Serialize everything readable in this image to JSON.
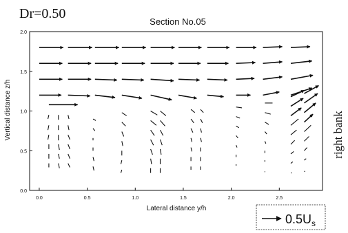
{
  "chart_data": {
    "type": "vector-field",
    "panel_label": "Dr=0.50",
    "title": "Section No.05",
    "xlabel": "Lateral distance y/h",
    "ylabel": "Vertical distance z/h",
    "side_label": "right bank",
    "xlim": [
      -0.1,
      2.95
    ],
    "ylim": [
      0.0,
      2.0
    ],
    "x_ticks": [
      {
        "value": 0.0,
        "label": "0.0"
      },
      {
        "value": 0.5,
        "label": "0.5"
      },
      {
        "value": 1.0,
        "label": "1.0"
      },
      {
        "value": 1.5,
        "label": "1.5"
      },
      {
        "value": 2.0,
        "label": "2.0"
      },
      {
        "value": 2.5,
        "label": "2.5"
      }
    ],
    "y_ticks": [
      {
        "value": 0.0,
        "label": "0.0"
      },
      {
        "value": 0.5,
        "label": "0.5"
      },
      {
        "value": 1.0,
        "label": "1.0"
      },
      {
        "value": 1.5,
        "label": "1.5"
      },
      {
        "value": 2.0,
        "label": "2.0"
      }
    ],
    "reference_vector": {
      "label": "0.5U",
      "subscript": "s",
      "magnitude": 0.5
    },
    "upper_rows": [
      {
        "z": 1.8,
        "vectors": [
          {
            "y": 0.0,
            "dy": 0.25,
            "dz": 0.0
          },
          {
            "y": 0.3,
            "dy": 0.25,
            "dz": 0.0
          },
          {
            "y": 0.58,
            "dy": 0.25,
            "dz": 0.0
          },
          {
            "y": 0.86,
            "dy": 0.25,
            "dz": 0.0
          },
          {
            "y": 1.16,
            "dy": 0.25,
            "dz": 0.0
          },
          {
            "y": 1.45,
            "dy": 0.24,
            "dz": 0.0
          },
          {
            "y": 1.75,
            "dy": 0.23,
            "dz": 0.0
          },
          {
            "y": 2.05,
            "dy": 0.21,
            "dz": 0.0
          },
          {
            "y": 2.33,
            "dy": 0.2,
            "dz": 0.01
          },
          {
            "y": 2.62,
            "dy": 0.2,
            "dz": 0.01
          }
        ]
      },
      {
        "z": 1.6,
        "vectors": [
          {
            "y": 0.0,
            "dy": 0.24,
            "dz": 0.0
          },
          {
            "y": 0.3,
            "dy": 0.24,
            "dz": 0.0
          },
          {
            "y": 0.58,
            "dy": 0.24,
            "dz": 0.0
          },
          {
            "y": 0.86,
            "dy": 0.24,
            "dz": 0.0
          },
          {
            "y": 1.16,
            "dy": 0.24,
            "dz": 0.0
          },
          {
            "y": 1.45,
            "dy": 0.23,
            "dz": 0.0
          },
          {
            "y": 1.75,
            "dy": 0.22,
            "dz": 0.0
          },
          {
            "y": 2.05,
            "dy": 0.2,
            "dz": 0.01
          },
          {
            "y": 2.33,
            "dy": 0.2,
            "dz": 0.02
          },
          {
            "y": 2.62,
            "dy": 0.22,
            "dz": 0.03
          }
        ]
      },
      {
        "z": 1.4,
        "vectors": [
          {
            "y": 0.0,
            "dy": 0.24,
            "dz": 0.0
          },
          {
            "y": 0.3,
            "dy": 0.24,
            "dz": 0.0
          },
          {
            "y": 0.58,
            "dy": 0.23,
            "dz": -0.01
          },
          {
            "y": 0.86,
            "dy": 0.23,
            "dz": -0.01
          },
          {
            "y": 1.16,
            "dy": 0.24,
            "dz": -0.02
          },
          {
            "y": 1.45,
            "dy": 0.22,
            "dz": -0.01
          },
          {
            "y": 1.75,
            "dy": 0.21,
            "dz": -0.01
          },
          {
            "y": 2.05,
            "dy": 0.19,
            "dz": 0.01
          },
          {
            "y": 2.33,
            "dy": 0.2,
            "dz": 0.03
          },
          {
            "y": 2.62,
            "dy": 0.23,
            "dz": 0.05
          }
        ]
      },
      {
        "z": 1.2,
        "vectors": [
          {
            "y": 0.0,
            "dy": 0.23,
            "dz": 0.0
          },
          {
            "y": 0.3,
            "dy": 0.23,
            "dz": -0.01
          },
          {
            "y": 0.58,
            "dy": 0.21,
            "dz": -0.03
          },
          {
            "y": 0.86,
            "dy": 0.21,
            "dz": -0.04
          },
          {
            "y": 1.16,
            "dy": 0.22,
            "dz": -0.06
          },
          {
            "y": 1.45,
            "dy": 0.19,
            "dz": -0.04
          },
          {
            "y": 1.75,
            "dy": 0.17,
            "dz": -0.02
          },
          {
            "y": 2.05,
            "dy": 0.15,
            "dz": 0.0
          },
          {
            "y": 2.33,
            "dy": 0.17,
            "dz": 0.04
          },
          {
            "y": 2.62,
            "dy": 0.22,
            "dz": 0.09
          }
        ]
      }
    ],
    "lower_columns": [
      {
        "y": 0.1,
        "cluster": [
          {
            "z": 1.08,
            "dy": 0.3,
            "dz": 0.0
          },
          {
            "z": 0.95,
            "dy": -0.01,
            "dz": -0.05
          },
          {
            "z": 0.82,
            "dy": -0.01,
            "dz": -0.06
          },
          {
            "z": 0.7,
            "dy": -0.01,
            "dz": -0.06
          },
          {
            "z": 0.58,
            "dy": 0.0,
            "dz": -0.06
          },
          {
            "z": 0.46,
            "dy": 0.0,
            "dz": -0.06
          },
          {
            "z": 0.34,
            "dy": 0.0,
            "dz": -0.05
          }
        ]
      },
      {
        "y": 0.2,
        "cluster": [
          {
            "z": 0.95,
            "dy": 0.0,
            "dz": -0.06
          },
          {
            "z": 0.82,
            "dy": 0.0,
            "dz": -0.06
          },
          {
            "z": 0.7,
            "dy": 0.0,
            "dz": -0.07
          },
          {
            "z": 0.58,
            "dy": 0.01,
            "dz": -0.07
          },
          {
            "z": 0.46,
            "dy": 0.01,
            "dz": -0.06
          },
          {
            "z": 0.34,
            "dy": 0.01,
            "dz": -0.06
          }
        ]
      },
      {
        "y": 0.3,
        "cluster": [
          {
            "z": 0.95,
            "dy": 0.01,
            "dz": -0.05
          },
          {
            "z": 0.82,
            "dy": 0.01,
            "dz": -0.06
          },
          {
            "z": 0.7,
            "dy": 0.02,
            "dz": -0.06
          },
          {
            "z": 0.58,
            "dy": 0.02,
            "dz": -0.06
          },
          {
            "z": 0.46,
            "dy": 0.02,
            "dz": -0.06
          },
          {
            "z": 0.34,
            "dy": 0.02,
            "dz": -0.05
          }
        ]
      },
      {
        "y": 0.56,
        "cluster": [
          {
            "z": 0.9,
            "dy": 0.03,
            "dz": -0.02
          },
          {
            "z": 0.78,
            "dy": 0.02,
            "dz": -0.03
          },
          {
            "z": 0.66,
            "dy": 0.0,
            "dz": -0.03
          },
          {
            "z": 0.54,
            "dy": 0.0,
            "dz": -0.04
          },
          {
            "z": 0.42,
            "dy": 0.01,
            "dz": -0.05
          },
          {
            "z": 0.3,
            "dy": 0.01,
            "dz": -0.05
          }
        ]
      },
      {
        "y": 0.86,
        "cluster": [
          {
            "z": 0.98,
            "dy": 0.05,
            "dz": -0.04
          },
          {
            "z": 0.86,
            "dy": 0.04,
            "dz": -0.05
          },
          {
            "z": 0.74,
            "dy": 0.02,
            "dz": -0.06
          },
          {
            "z": 0.62,
            "dy": 0.01,
            "dz": -0.06
          },
          {
            "z": 0.5,
            "dy": 0.0,
            "dz": -0.06
          },
          {
            "z": 0.38,
            "dy": -0.01,
            "dz": -0.05
          },
          {
            "z": 0.26,
            "dy": -0.01,
            "dz": -0.04
          }
        ]
      },
      {
        "y": 1.16,
        "cluster": [
          {
            "z": 1.0,
            "dy": 0.07,
            "dz": -0.05
          },
          {
            "z": 0.88,
            "dy": 0.06,
            "dz": -0.06
          },
          {
            "z": 0.76,
            "dy": 0.04,
            "dz": -0.07
          },
          {
            "z": 0.64,
            "dy": 0.03,
            "dz": -0.07
          },
          {
            "z": 0.52,
            "dy": 0.02,
            "dz": -0.07
          },
          {
            "z": 0.4,
            "dy": 0.01,
            "dz": -0.07
          },
          {
            "z": 0.28,
            "dy": 0.0,
            "dz": -0.06
          }
        ]
      },
      {
        "y": 1.26,
        "cluster": [
          {
            "z": 1.0,
            "dy": 0.06,
            "dz": -0.06
          },
          {
            "z": 0.88,
            "dy": 0.05,
            "dz": -0.07
          },
          {
            "z": 0.76,
            "dy": 0.03,
            "dz": -0.07
          },
          {
            "z": 0.64,
            "dy": 0.02,
            "dz": -0.07
          },
          {
            "z": 0.52,
            "dy": 0.01,
            "dz": -0.07
          },
          {
            "z": 0.4,
            "dy": 0.0,
            "dz": -0.07
          },
          {
            "z": 0.28,
            "dy": 0.0,
            "dz": -0.06
          }
        ]
      },
      {
        "y": 1.58,
        "cluster": [
          {
            "z": 1.02,
            "dy": 0.04,
            "dz": -0.04
          },
          {
            "z": 0.9,
            "dy": 0.03,
            "dz": -0.05
          },
          {
            "z": 0.78,
            "dy": 0.02,
            "dz": -0.05
          },
          {
            "z": 0.66,
            "dy": 0.01,
            "dz": -0.05
          },
          {
            "z": 0.54,
            "dy": 0.01,
            "dz": -0.05
          },
          {
            "z": 0.42,
            "dy": 0.0,
            "dz": -0.05
          },
          {
            "z": 0.3,
            "dy": 0.0,
            "dz": -0.04
          }
        ]
      },
      {
        "y": 1.68,
        "cluster": [
          {
            "z": 1.02,
            "dy": 0.03,
            "dz": -0.04
          },
          {
            "z": 0.9,
            "dy": 0.02,
            "dz": -0.05
          },
          {
            "z": 0.78,
            "dy": 0.01,
            "dz": -0.05
          },
          {
            "z": 0.66,
            "dy": 0.01,
            "dz": -0.05
          },
          {
            "z": 0.54,
            "dy": 0.0,
            "dz": -0.05
          },
          {
            "z": 0.42,
            "dy": 0.0,
            "dz": -0.05
          },
          {
            "z": 0.3,
            "dy": 0.0,
            "dz": -0.04
          }
        ]
      },
      {
        "y": 2.05,
        "cluster": [
          {
            "z": 1.05,
            "dy": 0.06,
            "dz": -0.01
          },
          {
            "z": 0.93,
            "dy": 0.04,
            "dz": -0.02
          },
          {
            "z": 0.81,
            "dy": 0.03,
            "dz": -0.02
          },
          {
            "z": 0.69,
            "dy": 0.02,
            "dz": -0.03
          },
          {
            "z": 0.57,
            "dy": 0.01,
            "dz": -0.03
          },
          {
            "z": 0.45,
            "dy": 0.0,
            "dz": -0.03
          },
          {
            "z": 0.33,
            "dy": 0.0,
            "dz": -0.02
          }
        ]
      },
      {
        "y": 2.35,
        "cluster": [
          {
            "z": 1.1,
            "dy": 0.08,
            "dz": 0.0
          },
          {
            "z": 0.98,
            "dy": 0.06,
            "dz": -0.02
          },
          {
            "z": 0.86,
            "dy": 0.04,
            "dz": -0.03
          },
          {
            "z": 0.74,
            "dy": 0.02,
            "dz": -0.03
          },
          {
            "z": 0.62,
            "dy": 0.01,
            "dz": -0.03
          },
          {
            "z": 0.5,
            "dy": 0.0,
            "dz": -0.03
          },
          {
            "z": 0.38,
            "dy": 0.0,
            "dz": -0.02
          },
          {
            "z": 0.24,
            "dy": 0.0,
            "dz": -0.01
          }
        ]
      },
      {
        "y": 2.62,
        "cluster": [
          {
            "z": 1.18,
            "dy": 0.14,
            "dz": 0.08
          },
          {
            "z": 1.06,
            "dy": 0.13,
            "dz": 0.1
          },
          {
            "z": 0.94,
            "dy": 0.11,
            "dz": 0.1
          },
          {
            "z": 0.82,
            "dy": 0.08,
            "dz": 0.08
          },
          {
            "z": 0.7,
            "dy": 0.06,
            "dz": 0.06
          },
          {
            "z": 0.58,
            "dy": 0.04,
            "dz": 0.05
          },
          {
            "z": 0.46,
            "dy": 0.03,
            "dz": 0.03
          },
          {
            "z": 0.34,
            "dy": 0.02,
            "dz": 0.02
          },
          {
            "z": 0.22,
            "dy": 0.01,
            "dz": 0.0
          }
        ]
      },
      {
        "y": 2.76,
        "cluster": [
          {
            "z": 1.22,
            "dy": 0.15,
            "dz": 0.1
          },
          {
            "z": 1.1,
            "dy": 0.14,
            "dz": 0.12
          },
          {
            "z": 0.98,
            "dy": 0.12,
            "dz": 0.12
          },
          {
            "z": 0.86,
            "dy": 0.09,
            "dz": 0.1
          },
          {
            "z": 0.74,
            "dy": 0.07,
            "dz": 0.08
          },
          {
            "z": 0.62,
            "dy": 0.05,
            "dz": 0.06
          },
          {
            "z": 0.5,
            "dy": 0.03,
            "dz": 0.04
          },
          {
            "z": 0.38,
            "dy": 0.02,
            "dz": 0.02
          },
          {
            "z": 0.24,
            "dy": 0.01,
            "dz": 0.0
          }
        ]
      }
    ],
    "grid": false,
    "legend": "bottom-right"
  }
}
